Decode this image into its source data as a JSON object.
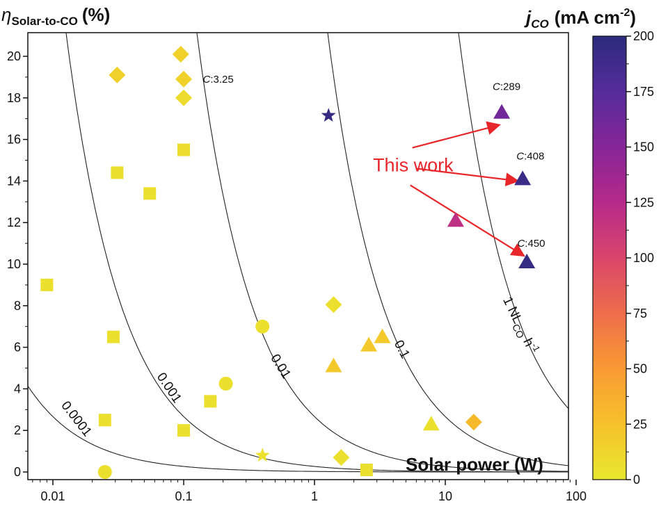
{
  "chart_data": {
    "type": "scatter",
    "title": "",
    "ylabel": {
      "symbol": "η",
      "subscript": "Solar-to-CO",
      "unit": "(%)"
    },
    "xlabel": "Solar power (W)",
    "xscale": "log",
    "xlim": [
      0.006,
      100
    ],
    "ylim": [
      -0.5,
      21
    ],
    "xticks": [
      "0.01",
      "0.1",
      "1",
      "10",
      "100"
    ],
    "yticks": [
      "0",
      "2",
      "4",
      "6",
      "8",
      "10",
      "12",
      "14",
      "16",
      "18",
      "20"
    ],
    "colorbar": {
      "label_main": "j",
      "label_sub": "CO",
      "label_unit": "(mA cm",
      "label_exp": "-2",
      "label_close": ")",
      "range": [
        0,
        200
      ],
      "ticks": [
        "0",
        "25",
        "50",
        "75",
        "100",
        "125",
        "150",
        "175",
        "200"
      ],
      "colors": [
        "#e8e82e",
        "#f6c12a",
        "#f99a33",
        "#ee6d4a",
        "#d9466b",
        "#b62a8a",
        "#862597",
        "#552c9b",
        "#2c2b7c"
      ]
    },
    "contours": [
      {
        "rate": 0.0001,
        "label": "0.0001"
      },
      {
        "rate": 0.001,
        "label": "0.001"
      },
      {
        "rate": 0.01,
        "label": "0.01"
      },
      {
        "rate": 0.1,
        "label": "0.1"
      },
      {
        "rate": 1,
        "label": "1 NL",
        "label_sub": "CO",
        "label_tail": " h",
        "label_exp": "-1"
      }
    ],
    "points": [
      {
        "x": 0.009,
        "y": 9.0,
        "shape": "square",
        "j": 5
      },
      {
        "x": 0.025,
        "y": 2.5,
        "shape": "square",
        "j": 5
      },
      {
        "x": 0.029,
        "y": 6.5,
        "shape": "square",
        "j": 5
      },
      {
        "x": 0.031,
        "y": 14.4,
        "shape": "square",
        "j": 5
      },
      {
        "x": 0.055,
        "y": 13.4,
        "shape": "square",
        "j": 5
      },
      {
        "x": 0.1,
        "y": 15.5,
        "shape": "square",
        "j": 8
      },
      {
        "x": 0.1,
        "y": 2.0,
        "shape": "square",
        "j": 5
      },
      {
        "x": 0.16,
        "y": 3.4,
        "shape": "square",
        "j": 5
      },
      {
        "x": 2.5,
        "y": 0.1,
        "shape": "square",
        "j": 5
      },
      {
        "x": 0.025,
        "y": 0.0,
        "shape": "circle",
        "j": 5
      },
      {
        "x": 0.21,
        "y": 4.25,
        "shape": "circle",
        "j": 5
      },
      {
        "x": 0.4,
        "y": 7.0,
        "shape": "circle",
        "j": 5
      },
      {
        "x": 0.031,
        "y": 19.1,
        "shape": "diamond",
        "j": 15
      },
      {
        "x": 0.095,
        "y": 20.1,
        "shape": "diamond",
        "j": 15
      },
      {
        "x": 0.1,
        "y": 18.9,
        "shape": "diamond",
        "j": 15
      },
      {
        "x": 0.1,
        "y": 18.0,
        "shape": "diamond",
        "j": 8
      },
      {
        "x": 1.4,
        "y": 8.05,
        "shape": "diamond",
        "j": 5
      },
      {
        "x": 1.6,
        "y": 0.7,
        "shape": "diamond",
        "j": 5
      },
      {
        "x": 16.5,
        "y": 2.4,
        "shape": "diamond",
        "j": 30
      },
      {
        "x": 1.4,
        "y": 5.1,
        "shape": "triangle",
        "j": 20
      },
      {
        "x": 2.6,
        "y": 6.1,
        "shape": "triangle",
        "j": 20
      },
      {
        "x": 3.3,
        "y": 6.5,
        "shape": "triangle",
        "j": 20
      },
      {
        "x": 7.8,
        "y": 2.3,
        "shape": "triangle",
        "j": 5
      },
      {
        "x": 12.0,
        "y": 12.1,
        "shape": "triangle",
        "j": 120
      },
      {
        "x": 27.0,
        "y": 17.3,
        "shape": "triangle",
        "j": 160
      },
      {
        "x": 39.0,
        "y": 14.1,
        "shape": "triangle",
        "j": 192
      },
      {
        "x": 42.0,
        "y": 10.1,
        "shape": "triangle",
        "j": 195
      },
      {
        "x": 1.28,
        "y": 17.15,
        "shape": "star",
        "j": 195
      },
      {
        "x": 0.4,
        "y": 0.8,
        "shape": "star",
        "j": 5
      }
    ],
    "annotations": [
      {
        "text": "C",
        "value": ":3.25",
        "x": 0.14,
        "y": 18.9
      },
      {
        "text": "C",
        "value": ":289",
        "x": 23.0,
        "y": 18.55
      },
      {
        "text": "C",
        "value": ":408",
        "x": 35.0,
        "y": 15.2
      },
      {
        "text": "C",
        "value": ":450",
        "x": 35.5,
        "y": 11.0
      }
    ],
    "callout": {
      "text": "This work",
      "color": "#e8262a",
      "x": 2.8,
      "y": 14.8,
      "arrows": [
        {
          "from": [
            5.6,
            15.6
          ],
          "to": [
            26.0,
            16.7
          ]
        },
        {
          "from": [
            6.0,
            14.6
          ],
          "to": [
            36.0,
            14.0
          ]
        },
        {
          "from": [
            5.4,
            13.8
          ],
          "to": [
            40.0,
            10.4
          ]
        }
      ]
    }
  }
}
